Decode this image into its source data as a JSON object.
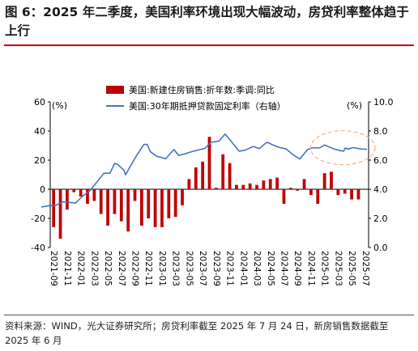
{
  "title": "图 6：2025 年二季度，美国利率环境出现大幅波动，房贷利率整体趋于上行",
  "source": "资料来源：WIND，光大证券研究所；房贷利率截至 2025 年 7 月 24 日，新房销售数据截至 2025 年 6 月",
  "colors": {
    "bar": "#c00000",
    "line": "#4472c4",
    "ellipse": "#f4b183"
  },
  "chart_data": {
    "type": "bar+line",
    "ylabel_left": "(%)",
    "ylabel_right": "(%)",
    "ylim_left": [
      -40,
      60
    ],
    "ylim_right": [
      0,
      10
    ],
    "yticks_left": [
      "60",
      "40",
      "20",
      "0",
      "-20",
      "-40"
    ],
    "yticks_right": [
      "10.0",
      "8.0",
      "6.0",
      "4.0",
      "2.0",
      "0.0"
    ],
    "legend": [
      {
        "name": "美国:新建住房销售:折年数:季调:同比",
        "type": "bar"
      },
      {
        "name": "美国:30年期抵押贷款固定利率（右轴）",
        "type": "line"
      }
    ],
    "legend_position": "top-center",
    "x_tick_labels": [
      "2021-09",
      "2021-11",
      "2022-01",
      "2022-03",
      "2022-05",
      "2022-07",
      "2022-09",
      "2022-11",
      "2023-01",
      "2023-03",
      "2023-05",
      "2023-07",
      "2023-09",
      "2023-11",
      "2024-01",
      "2024-03",
      "2024-05",
      "2024-07",
      "2024-09",
      "2024-11",
      "2025-01",
      "2025-03",
      "2025-05",
      "2025-07"
    ],
    "bar_series": {
      "name": "美国:新建住房销售:折年数:季调:同比",
      "axis": "left",
      "months": [
        "2021-09",
        "2021-10",
        "2021-11",
        "2021-12",
        "2022-01",
        "2022-02",
        "2022-03",
        "2022-04",
        "2022-05",
        "2022-06",
        "2022-07",
        "2022-08",
        "2022-09",
        "2022-10",
        "2022-11",
        "2022-12",
        "2023-01",
        "2023-02",
        "2023-03",
        "2023-04",
        "2023-05",
        "2023-06",
        "2023-07",
        "2023-08",
        "2023-09",
        "2023-10",
        "2023-11",
        "2023-12",
        "2024-01",
        "2024-02",
        "2024-03",
        "2024-04",
        "2024-05",
        "2024-06",
        "2024-07",
        "2024-08",
        "2024-09",
        "2024-10",
        "2024-11",
        "2024-12",
        "2025-01",
        "2025-02",
        "2025-03",
        "2025-04",
        "2025-05",
        "2025-06"
      ],
      "values": [
        -26,
        -34,
        -14,
        -2,
        -5,
        -10,
        -8,
        -17,
        -25,
        -17,
        -22,
        -29,
        -8,
        -25,
        -20,
        -26,
        -26,
        -20,
        -19,
        -11,
        7,
        15,
        19,
        36,
        1,
        24,
        18,
        3,
        3,
        4,
        3,
        6,
        7,
        8,
        -10,
        1,
        -1,
        7,
        -4,
        -10,
        11,
        12,
        -4,
        -3,
        -7,
        -7
      ]
    },
    "line_series": {
      "name": "美国:30年期抵押贷款固定利率（右轴）",
      "axis": "right",
      "points": [
        [
          "2021-07-22",
          2.78
        ],
        [
          "2021-08-26",
          2.87
        ],
        [
          "2021-09-23",
          2.88
        ],
        [
          "2021-10-28",
          3.14
        ],
        [
          "2021-11-24",
          3.1
        ],
        [
          "2021-12-23",
          3.05
        ],
        [
          "2022-01-27",
          3.55
        ],
        [
          "2022-02-24",
          3.89
        ],
        [
          "2022-03-24",
          4.42
        ],
        [
          "2022-04-28",
          5.1
        ],
        [
          "2022-05-26",
          5.1
        ],
        [
          "2022-06-16",
          5.78
        ],
        [
          "2022-06-30",
          5.7
        ],
        [
          "2022-07-28",
          5.3
        ],
        [
          "2022-08-04",
          4.99
        ],
        [
          "2022-08-25",
          5.55
        ],
        [
          "2022-09-22",
          6.29
        ],
        [
          "2022-10-20",
          6.94
        ],
        [
          "2022-10-27",
          7.08
        ],
        [
          "2022-11-10",
          7.08
        ],
        [
          "2022-11-24",
          6.58
        ],
        [
          "2022-12-22",
          6.27
        ],
        [
          "2023-01-26",
          6.13
        ],
        [
          "2023-02-02",
          6.09
        ],
        [
          "2023-02-23",
          6.5
        ],
        [
          "2023-03-09",
          6.73
        ],
        [
          "2023-03-30",
          6.32
        ],
        [
          "2023-04-27",
          6.43
        ],
        [
          "2023-05-25",
          6.57
        ],
        [
          "2023-06-29",
          6.71
        ],
        [
          "2023-07-27",
          6.81
        ],
        [
          "2023-08-24",
          7.23
        ],
        [
          "2023-09-28",
          7.31
        ],
        [
          "2023-10-26",
          7.79
        ],
        [
          "2023-11-22",
          7.29
        ],
        [
          "2023-12-28",
          6.61
        ],
        [
          "2024-01-25",
          6.69
        ],
        [
          "2024-02-29",
          6.94
        ],
        [
          "2024-03-28",
          6.79
        ],
        [
          "2024-04-25",
          7.17
        ],
        [
          "2024-05-02",
          7.22
        ],
        [
          "2024-05-30",
          7.03
        ],
        [
          "2024-06-27",
          6.86
        ],
        [
          "2024-07-25",
          6.78
        ],
        [
          "2024-08-29",
          6.35
        ],
        [
          "2024-09-26",
          6.08
        ],
        [
          "2024-10-31",
          6.72
        ],
        [
          "2024-11-21",
          6.84
        ],
        [
          "2024-12-26",
          6.85
        ],
        [
          "2025-01-16",
          7.04
        ],
        [
          "2025-01-30",
          6.95
        ],
        [
          "2025-02-27",
          6.76
        ],
        [
          "2025-03-27",
          6.65
        ],
        [
          "2025-04-10",
          6.62
        ],
        [
          "2025-04-17",
          6.83
        ],
        [
          "2025-05-01",
          6.76
        ],
        [
          "2025-05-22",
          6.86
        ],
        [
          "2025-06-26",
          6.77
        ],
        [
          "2025-07-17",
          6.75
        ],
        [
          "2025-07-24",
          6.74
        ]
      ]
    }
  }
}
